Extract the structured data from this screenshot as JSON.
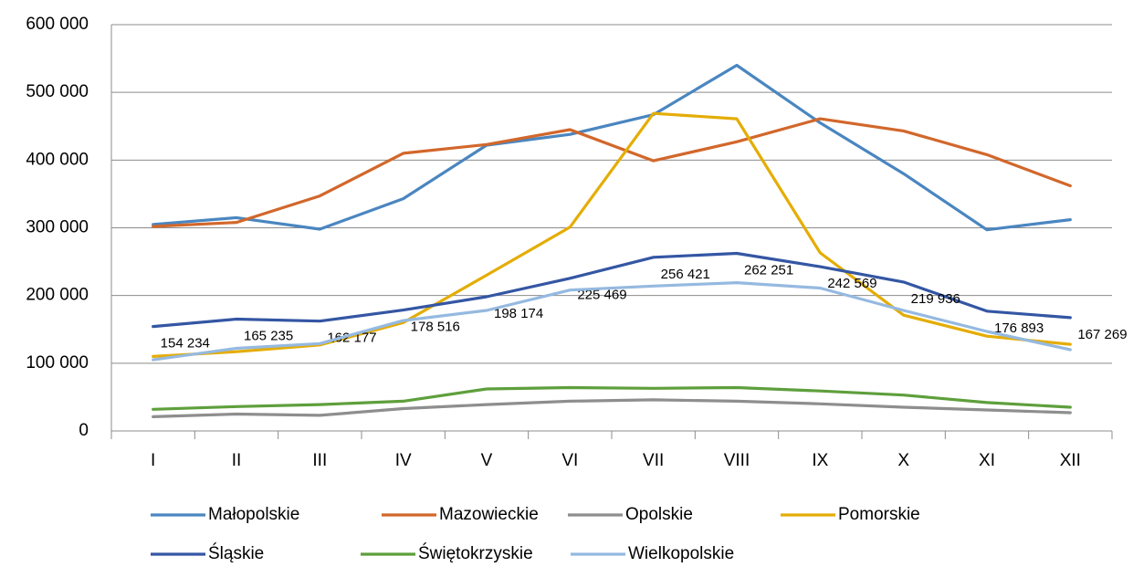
{
  "chart_data": {
    "type": "line",
    "categories": [
      "I",
      "II",
      "III",
      "IV",
      "V",
      "VI",
      "VII",
      "VIII",
      "IX",
      "X",
      "XI",
      "XII"
    ],
    "ylim": [
      0,
      600000
    ],
    "yticks": [
      {
        "value": 0,
        "label": "0"
      },
      {
        "value": 100000,
        "label": "100 000"
      },
      {
        "value": 200000,
        "label": "200 000"
      },
      {
        "value": 300000,
        "label": "300 000"
      },
      {
        "value": 400000,
        "label": "400 000"
      },
      {
        "value": 500000,
        "label": "500 000"
      },
      {
        "value": 600000,
        "label": "600 000"
      }
    ],
    "grid": true,
    "legend": "bottom",
    "series": [
      {
        "name": "Małopolskie",
        "color": "#4a86c0",
        "values": [
          305000,
          315000,
          298000,
          343000,
          422000,
          438000,
          467000,
          540000,
          455000,
          380000,
          297000,
          312000
        ]
      },
      {
        "name": "Mazowieckie",
        "color": "#d2672b",
        "values": [
          302000,
          308000,
          347000,
          410000,
          423000,
          445000,
          399000,
          427000,
          461000,
          443000,
          408000,
          362000
        ]
      },
      {
        "name": "Opolskie",
        "color": "#8e8e8e",
        "values": [
          21000,
          25000,
          23000,
          33000,
          39000,
          44000,
          46000,
          44000,
          40000,
          35000,
          31000,
          27000
        ]
      },
      {
        "name": "Pomorskie",
        "color": "#e4ad06",
        "values": [
          110000,
          117000,
          127000,
          160000,
          230000,
          301000,
          469000,
          461000,
          263000,
          171000,
          140000,
          128000
        ]
      },
      {
        "name": "Śląskie",
        "color": "#3456a3",
        "values": [
          154234,
          165235,
          162177,
          178516,
          198174,
          225469,
          256421,
          262251,
          242569,
          219936,
          176893,
          167269
        ],
        "value_labels": [
          "154 234",
          "165 235",
          "162 177",
          "178 516",
          "198 174",
          "225 469",
          "256 421",
          "262 251",
          "242 569",
          "219 936",
          "176 893",
          "167 269"
        ]
      },
      {
        "name": "Świętokrzyskie",
        "color": "#5e9f3c",
        "values": [
          32000,
          36000,
          39000,
          44000,
          62000,
          64000,
          63000,
          64000,
          59000,
          53000,
          42000,
          35000
        ]
      },
      {
        "name": "Wielkopolskie",
        "color": "#95b9e0",
        "values": [
          105000,
          122000,
          129000,
          163000,
          178000,
          208000,
          214000,
          219000,
          211000,
          178000,
          147000,
          120000
        ]
      }
    ]
  }
}
